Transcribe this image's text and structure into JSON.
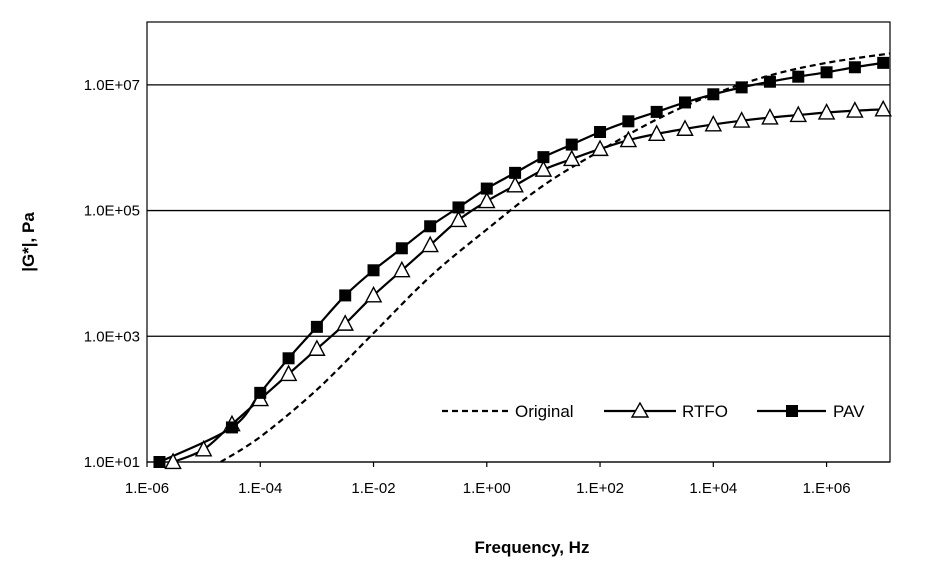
{
  "chart_data": {
    "type": "line",
    "title": "",
    "xlabel": "Frequency, Hz",
    "ylabel": "|G*|, Pa",
    "x_scale": "log",
    "y_scale": "log",
    "xlim_exponent": [
      -6,
      7.12
    ],
    "ylim_exponent": [
      1,
      8
    ],
    "grid": "horizontal",
    "legend_position": "bottom-right",
    "x_ticks": [
      {
        "label": "1.E-06",
        "exp": -6
      },
      {
        "label": "1.E-04",
        "exp": -4
      },
      {
        "label": "1.E-02",
        "exp": -2
      },
      {
        "label": "1.E+00",
        "exp": 0
      },
      {
        "label": "1.E+02",
        "exp": 2
      },
      {
        "label": "1.E+04",
        "exp": 4
      },
      {
        "label": "1.E+06",
        "exp": 6
      }
    ],
    "y_ticks": [
      {
        "label": "1.0E+01",
        "exp": 1
      },
      {
        "label": "1.0E+03",
        "exp": 3
      },
      {
        "label": "1.0E+05",
        "exp": 5
      },
      {
        "label": "1.0E+07",
        "exp": 7
      }
    ],
    "series": [
      {
        "name": "Original",
        "style": "dashed",
        "marker": "none",
        "color": "#000000",
        "log_x": [
          -4.7,
          -4.0,
          -3.0,
          -2.0,
          -1.0,
          0.0,
          1.0,
          2.0,
          3.0,
          4.0,
          5.0,
          6.0,
          7.12
        ],
        "log_y": [
          1.0,
          1.4,
          2.15,
          3.05,
          3.95,
          4.7,
          5.4,
          5.95,
          6.45,
          6.85,
          7.15,
          7.35,
          7.5
        ]
      },
      {
        "name": "RTFO",
        "style": "solid",
        "marker": "open-triangle",
        "color": "#000000",
        "log_x": [
          -5.54,
          -5.0,
          -4.5,
          -4.0,
          -3.5,
          -3.0,
          -2.5,
          -2.0,
          -1.5,
          -1.0,
          -0.5,
          0.0,
          0.5,
          1.0,
          1.5,
          2.0,
          2.5,
          3.0,
          3.5,
          4.0,
          4.5,
          5.0,
          5.5,
          6.0,
          6.5,
          7.0
        ],
        "log_y": [
          1.0,
          1.2,
          1.6,
          2.0,
          2.4,
          2.8,
          3.2,
          3.65,
          4.05,
          4.45,
          4.85,
          5.15,
          5.4,
          5.65,
          5.82,
          5.98,
          6.12,
          6.22,
          6.3,
          6.37,
          6.43,
          6.48,
          6.52,
          6.56,
          6.59,
          6.61
        ]
      },
      {
        "name": "PAV",
        "style": "solid",
        "marker": "filled-square",
        "color": "#000000",
        "log_x": [
          -5.78,
          -4.5,
          -4.0,
          -3.5,
          -3.0,
          -2.5,
          -2.0,
          -1.5,
          -1.0,
          -0.5,
          0.0,
          0.5,
          1.0,
          1.5,
          2.0,
          2.5,
          3.0,
          3.5,
          4.0,
          4.5,
          5.0,
          5.5,
          6.0,
          6.5,
          7.0
        ],
        "log_y": [
          1.0,
          1.55,
          2.1,
          2.65,
          3.15,
          3.65,
          4.05,
          4.4,
          4.75,
          5.05,
          5.35,
          5.6,
          5.85,
          6.05,
          6.25,
          6.42,
          6.57,
          6.72,
          6.85,
          6.96,
          7.05,
          7.13,
          7.2,
          7.28,
          7.35
        ]
      }
    ]
  }
}
